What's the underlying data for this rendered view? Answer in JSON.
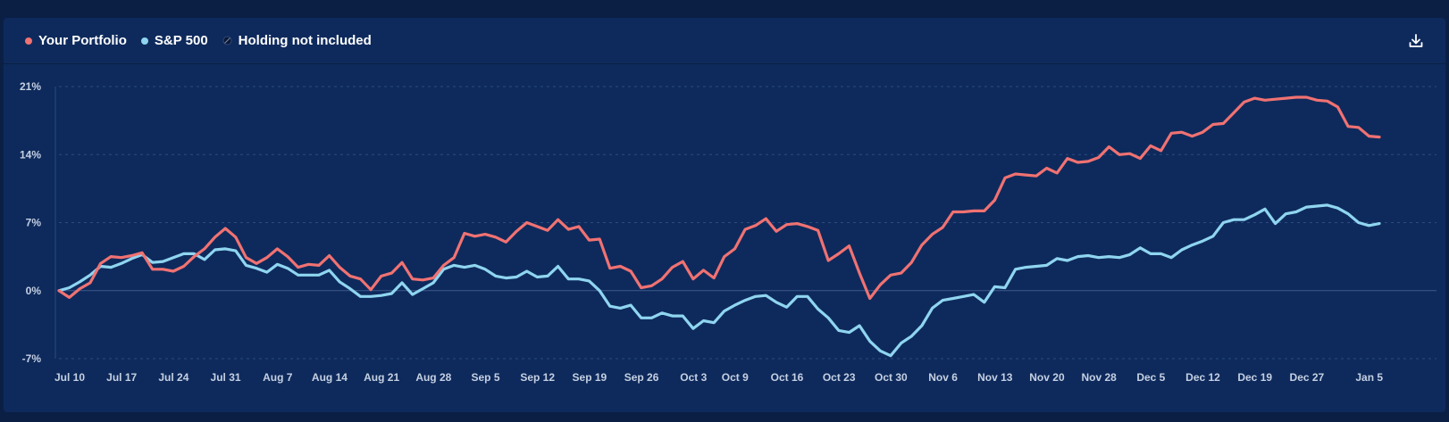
{
  "legend": {
    "portfolio_label": "Your Portfolio",
    "sp500_label": "S&P 500",
    "not_included_label": "Holding not included"
  },
  "colors": {
    "portfolio": "#f07272",
    "sp500": "#8fd5f0",
    "grid": "#2b4a7e",
    "zero_line": "#3d5a8c"
  },
  "icons": {
    "download": "download-icon",
    "not_included": "slashed-circle-icon"
  },
  "chart_data": {
    "type": "line",
    "ylim": [
      -7,
      21
    ],
    "yticks": [
      21,
      14,
      7,
      0,
      -7
    ],
    "ytick_labels": [
      "21%",
      "14%",
      "7%",
      "0%",
      "-7%"
    ],
    "xtick_labels": [
      "Jul 10",
      "Jul 17",
      "Jul 24",
      "Jul 31",
      "Aug 7",
      "Aug 14",
      "Aug 21",
      "Aug 28",
      "Sep 5",
      "Sep 12",
      "Sep 19",
      "Sep 26",
      "Oct 3",
      "Oct 9",
      "Oct 16",
      "Oct 23",
      "Oct 30",
      "Nov 6",
      "Nov 13",
      "Nov 20",
      "Nov 28",
      "Dec 5",
      "Dec 12",
      "Dec 19",
      "Dec 27",
      "Jan 5"
    ],
    "xtick_index": [
      0,
      5,
      10,
      15,
      20,
      25,
      30,
      35,
      40,
      45,
      50,
      55,
      60,
      64,
      69,
      74,
      79,
      84,
      89,
      94,
      99,
      104,
      109,
      114,
      119,
      125
    ],
    "series": [
      {
        "name": "Your Portfolio",
        "values": [
          0.0,
          -0.7,
          0.2,
          0.8,
          2.8,
          3.5,
          3.4,
          3.6,
          3.9,
          2.2,
          2.2,
          2.0,
          2.5,
          3.5,
          4.3,
          5.5,
          6.4,
          5.5,
          3.4,
          2.8,
          3.4,
          4.3,
          3.5,
          2.4,
          2.7,
          2.6,
          3.6,
          2.4,
          1.5,
          1.2,
          0.1,
          1.5,
          1.8,
          2.9,
          1.2,
          1.1,
          1.3,
          2.6,
          3.4,
          5.9,
          5.6,
          5.8,
          5.5,
          5.0,
          6.1,
          7.0,
          6.6,
          6.2,
          7.3,
          6.3,
          6.6,
          5.2,
          5.3,
          2.3,
          2.5,
          2.0,
          0.3,
          0.5,
          1.2,
          2.4,
          3.0,
          1.2,
          2.1,
          1.3,
          3.5,
          4.3,
          6.3,
          6.7,
          7.4,
          6.1,
          6.8,
          6.9,
          6.6,
          6.2,
          3.1,
          3.8,
          4.6,
          1.8,
          -0.8,
          0.6,
          1.6,
          1.8,
          2.9,
          4.7,
          5.8,
          6.5,
          8.1,
          8.1,
          8.2,
          8.2,
          9.3,
          11.6,
          12.0,
          11.9,
          11.8,
          12.6,
          12.1,
          13.6,
          13.2,
          13.3,
          13.7,
          14.8,
          14.0,
          14.1,
          13.6,
          14.9,
          14.4,
          16.2,
          16.3,
          15.9,
          16.3,
          17.1,
          17.2,
          18.3,
          19.4,
          19.8,
          19.6,
          19.7,
          19.8,
          19.9,
          19.9,
          19.6,
          19.5,
          18.9,
          16.9,
          16.8,
          15.9,
          15.8
        ],
        "color": "#f07272"
      },
      {
        "name": "S&P 500",
        "values": [
          0.0,
          0.3,
          0.9,
          1.6,
          2.5,
          2.4,
          2.8,
          3.3,
          3.7,
          2.9,
          3.0,
          3.4,
          3.8,
          3.8,
          3.2,
          4.2,
          4.3,
          4.1,
          2.6,
          2.3,
          1.9,
          2.7,
          2.3,
          1.6,
          1.6,
          1.6,
          2.1,
          0.9,
          0.2,
          -0.6,
          -0.6,
          -0.5,
          -0.3,
          0.8,
          -0.4,
          0.2,
          0.8,
          2.2,
          2.6,
          2.4,
          2.6,
          2.2,
          1.5,
          1.3,
          1.4,
          2.0,
          1.4,
          1.5,
          2.5,
          1.2,
          1.2,
          1.0,
          0.0,
          -1.6,
          -1.8,
          -1.5,
          -2.8,
          -2.8,
          -2.3,
          -2.6,
          -2.6,
          -3.9,
          -3.1,
          -3.3,
          -2.1,
          -1.5,
          -1.0,
          -0.6,
          -0.5,
          -1.2,
          -1.7,
          -0.6,
          -0.6,
          -1.9,
          -2.8,
          -4.1,
          -4.3,
          -3.6,
          -5.2,
          -6.2,
          -6.7,
          -5.4,
          -4.7,
          -3.6,
          -1.8,
          -1.0,
          -0.8,
          -0.6,
          -0.4,
          -1.2,
          0.4,
          0.3,
          2.2,
          2.4,
          2.5,
          2.6,
          3.3,
          3.1,
          3.5,
          3.6,
          3.4,
          3.5,
          3.4,
          3.7,
          4.4,
          3.8,
          3.8,
          3.4,
          4.2,
          4.7,
          5.1,
          5.6,
          7.0,
          7.3,
          7.3,
          7.8,
          8.4,
          6.9,
          7.9,
          8.1,
          8.6,
          8.7,
          8.8,
          8.5,
          7.9,
          7.0,
          6.7,
          6.9
        ],
        "color": "#8fd5f0"
      }
    ]
  }
}
